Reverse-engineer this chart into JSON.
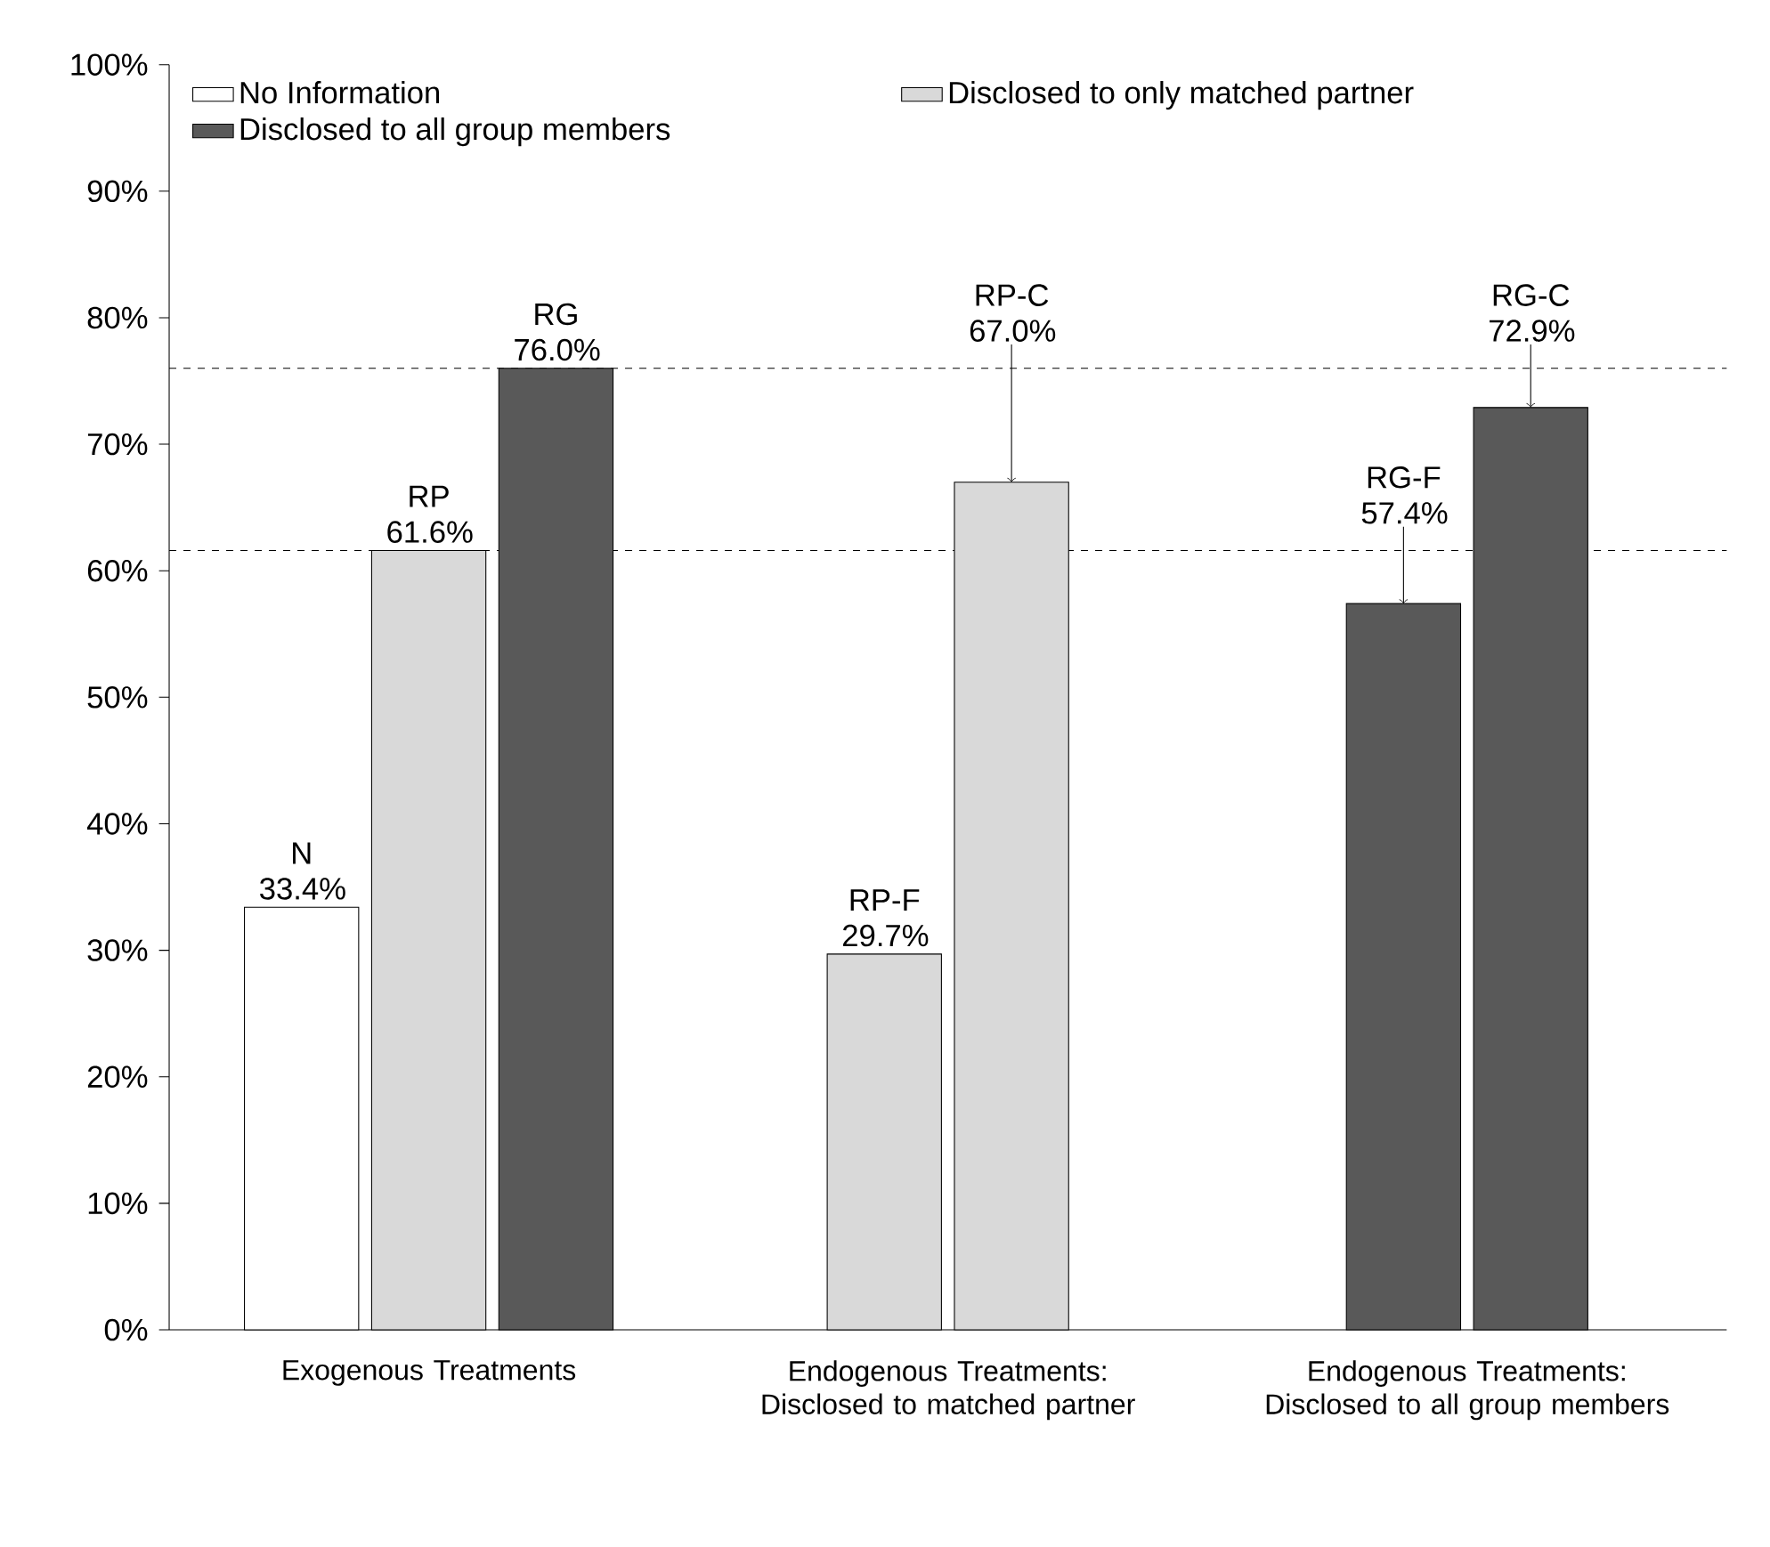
{
  "chart_data": {
    "type": "bar",
    "categories": [
      "Exogenous Treatments",
      "Endogenous Treatments: Disclosed to matched partner",
      "Endogenous Treatments: Disclosed to all group members"
    ],
    "series": [
      {
        "name": "No Information",
        "color": "#ffffff",
        "values": [
          33.4,
          null,
          null
        ],
        "value_labels": [
          "N 33.4%",
          null,
          null
        ]
      },
      {
        "name": "Disclosed to only matched partner",
        "color": "#d9d9d9",
        "values": [
          61.6,
          29.7,
          null
        ],
        "value_labels": [
          "RP 61.6%",
          "RP-F 29.7%",
          null
        ]
      },
      {
        "name": "Disclosed to all group members",
        "color": "#595959",
        "values": [
          76.0,
          null,
          57.4
        ],
        "value_labels": [
          "RG 76.0%",
          null,
          "RG-F 57.4%"
        ]
      },
      {
        "color": "#d9d9d9",
        "values": [
          null,
          67.0,
          null
        ],
        "value_labels": [
          null,
          "RP-C 67.0%",
          null
        ]
      },
      {
        "color": "#595959",
        "values": [
          null,
          null,
          72.9
        ],
        "value_labels": [
          null,
          null,
          "RG-C 72.9%"
        ]
      }
    ],
    "ylim": [
      0,
      100
    ],
    "yticks": [
      {
        "value": 0,
        "label": "0%"
      },
      {
        "value": 10,
        "label": "10%"
      },
      {
        "value": 20,
        "label": "20%"
      },
      {
        "value": 30,
        "label": "30%"
      },
      {
        "value": 40,
        "label": "40%"
      },
      {
        "value": 50,
        "label": "50%"
      },
      {
        "value": 60,
        "label": "60%"
      },
      {
        "value": 70,
        "label": "70%"
      },
      {
        "value": 80,
        "label": "80%"
      },
      {
        "value": 90,
        "label": "90%"
      },
      {
        "value": 100,
        "label": "100%"
      }
    ],
    "legend": "top left",
    "ref_lines": [
      {
        "axis": "y",
        "value": 61.6,
        "line_style": "dashed"
      },
      {
        "axis": "y",
        "value": 76.0,
        "line_style": "dashed"
      }
    ]
  }
}
